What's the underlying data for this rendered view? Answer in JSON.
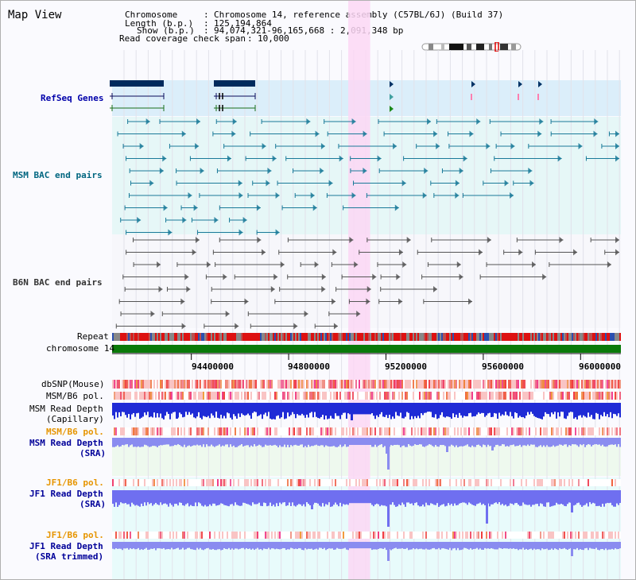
{
  "title": "Map View",
  "info": {
    "chromosome_key": "Chromosome",
    "chromosome_value": "Chromosome 14, reference assembly (C57BL/6J) (Build 37)",
    "length_key": "Length (b.p.)",
    "length_value": "125,194,864",
    "show_key": "Show (b.p.)",
    "show_value": "94,074,321-96,165,668 : 2,091,348 bp",
    "span_key": "Read coverage check span",
    "span_value": "10,000"
  },
  "axis": {
    "ticks": [
      "94400000",
      "94800000",
      "95200000",
      "95600000",
      "96000000"
    ],
    "range": [
      94074321,
      96165668
    ]
  },
  "highlight_range": [
    95045000,
    95135000
  ],
  "tracks": {
    "refseq": {
      "label": "RefSeq Genes",
      "color": "#0000aa"
    },
    "msm_bac": {
      "label": "MSM BAC end pairs",
      "color": "#006680"
    },
    "b6n_bac": {
      "label": "B6N BAC end pairs",
      "color": "#333333"
    },
    "repeat": {
      "label": "Repeat",
      "color": "#000000"
    },
    "chrom": {
      "label": "chromosome 14",
      "color": "#000000"
    },
    "dbsnp": {
      "label": "dbSNP(Mouse)",
      "color": "#000000"
    },
    "msm_pol": {
      "label": "MSM/B6 pol.",
      "color": "#000000"
    },
    "msm_cap": {
      "label_line1": "MSM Read Depth",
      "label_line2": "(Capillary)",
      "color": "#000000"
    },
    "msm_pol2": {
      "label": "MSM/B6 pol.",
      "color": "#e69500"
    },
    "msm_sra": {
      "label_line1": "MSM Read Depth",
      "label_line2": "(SRA)",
      "color": "#000099"
    },
    "jf1_pol": {
      "label": "JF1/B6 pol.",
      "color": "#e69500"
    },
    "jf1_sra": {
      "label_line1": "JF1 Read Depth",
      "label_line2": "(SRA)",
      "color": "#000099"
    },
    "jf1_pol2": {
      "label": "JF1/B6 pol.",
      "color": "#e69500"
    },
    "jf1_trim": {
      "label_line1": "JF1 Read Depth",
      "label_line2": "(SRA trimmed)",
      "color": "#000099"
    }
  }
}
